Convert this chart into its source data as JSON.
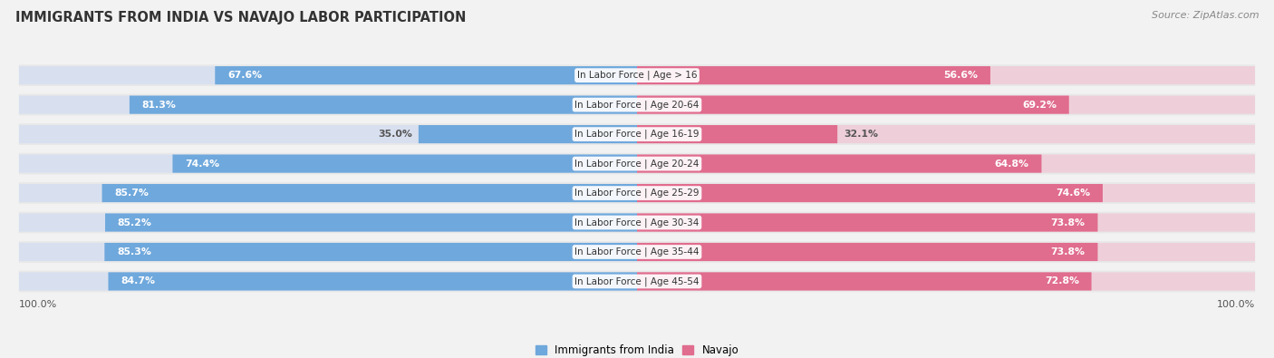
{
  "title": "IMMIGRANTS FROM INDIA VS NAVAJO LABOR PARTICIPATION",
  "source": "Source: ZipAtlas.com",
  "categories": [
    "In Labor Force | Age > 16",
    "In Labor Force | Age 20-64",
    "In Labor Force | Age 16-19",
    "In Labor Force | Age 20-24",
    "In Labor Force | Age 25-29",
    "In Labor Force | Age 30-34",
    "In Labor Force | Age 35-44",
    "In Labor Force | Age 45-54"
  ],
  "india_values": [
    67.6,
    81.3,
    35.0,
    74.4,
    85.7,
    85.2,
    85.3,
    84.7
  ],
  "navajo_values": [
    56.6,
    69.2,
    32.1,
    64.8,
    74.6,
    73.8,
    73.8,
    72.8
  ],
  "india_color": "#6fa8dc",
  "india_color_light": "#c9daf8",
  "navajo_color": "#e06c8e",
  "navajo_color_light": "#f4b8cb",
  "row_bg_color": "#e8e8e8",
  "background_color": "#f2f2f2",
  "legend_india": "Immigrants from India",
  "legend_navajo": "Navajo",
  "footer_label": "100.0%"
}
